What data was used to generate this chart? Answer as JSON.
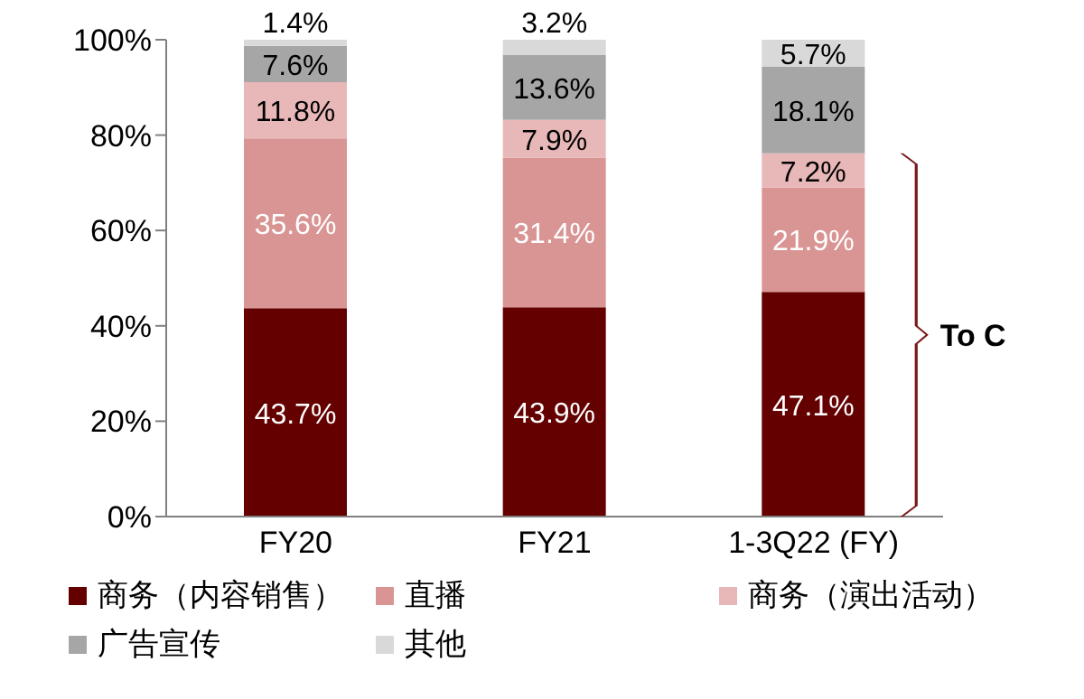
{
  "chart_data": {
    "type": "bar",
    "stacked": true,
    "categories": [
      "FY20",
      "FY21",
      "1-3Q22 (FY)"
    ],
    "series": [
      {
        "name": "商务（内容销售）",
        "color": "#640000",
        "values": [
          43.7,
          43.9,
          47.1
        ],
        "value_labels": [
          "43.7%",
          "43.9%",
          "47.1%"
        ]
      },
      {
        "name": "直播",
        "color": "#d99594",
        "values": [
          35.6,
          31.4,
          21.9
        ],
        "value_labels": [
          "35.6%",
          "31.4%",
          "21.9%"
        ]
      },
      {
        "name": "商务（演出活动）",
        "color": "#e8b7b7",
        "values": [
          11.8,
          7.9,
          7.2
        ],
        "value_labels": [
          "11.8%",
          "7.9%",
          "7.2%"
        ]
      },
      {
        "name": "广告宣传",
        "color": "#a6a6a6",
        "values": [
          7.6,
          13.6,
          18.1
        ],
        "value_labels": [
          "7.6%",
          "13.6%",
          "18.1%"
        ]
      },
      {
        "name": "其他",
        "color": "#d9d9d9",
        "values": [
          1.4,
          3.2,
          5.7
        ],
        "value_labels": [
          "1.4%",
          "3.2%",
          "5.7%"
        ]
      }
    ],
    "ylim": [
      0,
      100
    ],
    "yticks": [
      {
        "value": 0,
        "label": "0%"
      },
      {
        "value": 20,
        "label": "20%"
      },
      {
        "value": 40,
        "label": "40%"
      },
      {
        "value": 60,
        "label": "60%"
      },
      {
        "value": 80,
        "label": "80%"
      },
      {
        "value": 100,
        "label": "100%"
      }
    ],
    "legend": "bottom",
    "annotations": [
      "To C"
    ]
  }
}
